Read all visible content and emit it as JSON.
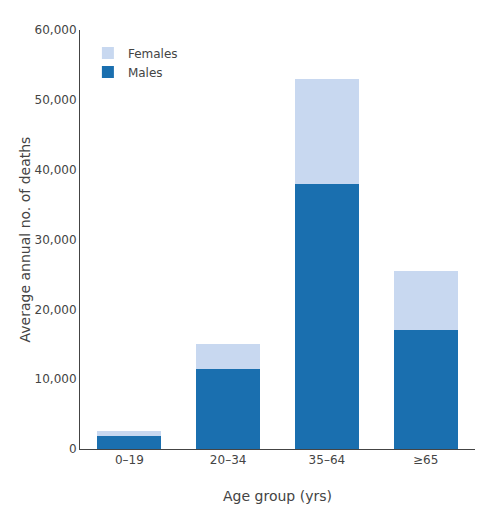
{
  "chart_data": {
    "type": "bar",
    "stacked": true,
    "xlabel": "Age group (yrs)",
    "ylabel": "Average annual no. of deaths",
    "categories": [
      "0–19",
      "20–34",
      "35–64",
      "≥65"
    ],
    "series": [
      {
        "name": "Males",
        "color": "#1a6faf",
        "values": [
          1900,
          11500,
          38000,
          17000
        ]
      },
      {
        "name": "Females",
        "color": "#c8d8f0",
        "values": [
          700,
          3500,
          15000,
          8500
        ]
      }
    ],
    "ylim": [
      0,
      60000
    ],
    "yticks": [
      0,
      {
        "value": 10000,
        "label": "10,000"
      },
      {
        "value": 20000,
        "label": "20,000"
      },
      {
        "value": 30000,
        "label": "30,000"
      },
      {
        "value": 40000,
        "label": "40,000"
      },
      {
        "value": 50000,
        "label": "50,000"
      },
      {
        "value": 60000,
        "label": "60,000"
      }
    ],
    "grid": false,
    "legend": "upper left"
  }
}
